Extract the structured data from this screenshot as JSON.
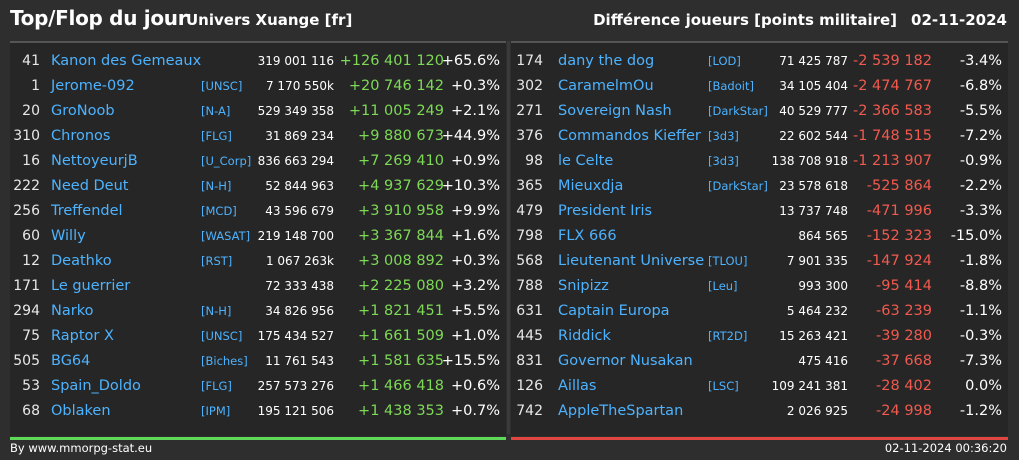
{
  "header": {
    "title": "Top/Flop du jour",
    "universe": "Univers Xuange [fr]",
    "metric": "Différence joueurs [points militaire]",
    "date": "02-11-2024"
  },
  "top": [
    {
      "rank": "41",
      "name": "Kanon des Gemeaux",
      "alliance": "",
      "points": "319 001 116",
      "diff": "+126 401 120",
      "pct": "+65.6%"
    },
    {
      "rank": "1",
      "name": "Jerome-092",
      "alliance": "[UNSC]",
      "points": "7 170 550k",
      "diff": "+20 746 142",
      "pct": "+0.3%"
    },
    {
      "rank": "20",
      "name": "GroNoob",
      "alliance": "[N-A]",
      "points": "529 349 358",
      "diff": "+11 005 249",
      "pct": "+2.1%"
    },
    {
      "rank": "310",
      "name": "Chronos",
      "alliance": "[FLG]",
      "points": "31 869 234",
      "diff": "+9 880 673",
      "pct": "+44.9%"
    },
    {
      "rank": "16",
      "name": "NettoyeurjB",
      "alliance": "[U_Corp]",
      "points": "836 663 294",
      "diff": "+7 269 410",
      "pct": "+0.9%"
    },
    {
      "rank": "222",
      "name": "Need Deut",
      "alliance": "[N-H]",
      "points": "52 844 963",
      "diff": "+4 937 629",
      "pct": "+10.3%"
    },
    {
      "rank": "256",
      "name": "Treffendel",
      "alliance": "[MCD]",
      "points": "43 596 679",
      "diff": "+3 910 958",
      "pct": "+9.9%"
    },
    {
      "rank": "60",
      "name": "Willy",
      "alliance": "[WASAT]",
      "points": "219 148 700",
      "diff": "+3 367 844",
      "pct": "+1.6%"
    },
    {
      "rank": "12",
      "name": "Deathko",
      "alliance": "[RST]",
      "points": "1 067 263k",
      "diff": "+3 008 892",
      "pct": "+0.3%"
    },
    {
      "rank": "171",
      "name": "Le guerrier",
      "alliance": "",
      "points": "72 333 438",
      "diff": "+2 225 080",
      "pct": "+3.2%"
    },
    {
      "rank": "294",
      "name": "Narko",
      "alliance": "[N-H]",
      "points": "34 826 956",
      "diff": "+1 821 451",
      "pct": "+5.5%"
    },
    {
      "rank": "75",
      "name": "Raptor X",
      "alliance": "[UNSC]",
      "points": "175 434 527",
      "diff": "+1 661 509",
      "pct": "+1.0%"
    },
    {
      "rank": "505",
      "name": "BG64",
      "alliance": "[Biches]",
      "points": "11 761 543",
      "diff": "+1 581 635",
      "pct": "+15.5%"
    },
    {
      "rank": "53",
      "name": "Spain_Doldo",
      "alliance": "[FLG]",
      "points": "257 573 276",
      "diff": "+1 466 418",
      "pct": "+0.6%"
    },
    {
      "rank": "68",
      "name": "Oblaken",
      "alliance": "[IPM]",
      "points": "195 121 506",
      "diff": "+1 438 353",
      "pct": "+0.7%"
    }
  ],
  "flop": [
    {
      "rank": "174",
      "name": "dany the dog",
      "alliance": "[LOD]",
      "points": "71 425 787",
      "diff": "-2 539 182",
      "pct": "-3.4%"
    },
    {
      "rank": "302",
      "name": "CaramelmOu",
      "alliance": "[Badoit]",
      "points": "34 105 404",
      "diff": "-2 474 767",
      "pct": "-6.8%"
    },
    {
      "rank": "271",
      "name": "Sovereign Nash",
      "alliance": "[DarkStar]",
      "points": "40 529 777",
      "diff": "-2 366 583",
      "pct": "-5.5%"
    },
    {
      "rank": "376",
      "name": "Commandos Kieffer",
      "alliance": "[3d3]",
      "points": "22 602 544",
      "diff": "-1 748 515",
      "pct": "-7.2%"
    },
    {
      "rank": "98",
      "name": "le Celte",
      "alliance": "[3d3]",
      "points": "138 708 918",
      "diff": "-1 213 907",
      "pct": "-0.9%"
    },
    {
      "rank": "365",
      "name": "Mieuxdja",
      "alliance": "[DarkStar]",
      "points": "23 578 618",
      "diff": "-525 864",
      "pct": "-2.2%"
    },
    {
      "rank": "479",
      "name": "President Iris",
      "alliance": "",
      "points": "13 737 748",
      "diff": "-471 996",
      "pct": "-3.3%"
    },
    {
      "rank": "798",
      "name": "FLX 666",
      "alliance": "",
      "points": "864 565",
      "diff": "-152 323",
      "pct": "-15.0%"
    },
    {
      "rank": "568",
      "name": "Lieutenant Universe",
      "alliance": "[TLOU]",
      "points": "7 901 335",
      "diff": "-147 924",
      "pct": "-1.8%"
    },
    {
      "rank": "788",
      "name": "Snipizz",
      "alliance": "[Leu]",
      "points": "993 300",
      "diff": "-95 414",
      "pct": "-8.8%"
    },
    {
      "rank": "631",
      "name": "Captain Europa",
      "alliance": "",
      "points": "5 464 232",
      "diff": "-63 239",
      "pct": "-1.1%"
    },
    {
      "rank": "445",
      "name": "Riddick",
      "alliance": "[RT2D]",
      "points": "15 263 421",
      "diff": "-39 280",
      "pct": "-0.3%"
    },
    {
      "rank": "831",
      "name": "Governor Nusakan",
      "alliance": "",
      "points": "475 416",
      "diff": "-37 668",
      "pct": "-7.3%"
    },
    {
      "rank": "126",
      "name": "Aillas",
      "alliance": "[LSC]",
      "points": "109 241 381",
      "diff": "-28 402",
      "pct": "0.0%"
    },
    {
      "rank": "742",
      "name": "AppleTheSpartan",
      "alliance": "",
      "points": "2 026 925",
      "diff": "-24 998",
      "pct": "-1.2%"
    }
  ],
  "footer": {
    "source": "By www.mmorpg-stat.eu",
    "timestamp": "02-11-2024 00:36:20"
  },
  "colors": {
    "background": "#2e2e2e",
    "panel": "#262626",
    "name_link": "#4db3ff",
    "positive": "#7ed957",
    "negative": "#f05a4f",
    "top_line": "#5fd85a",
    "flop_line": "#e0453f"
  }
}
